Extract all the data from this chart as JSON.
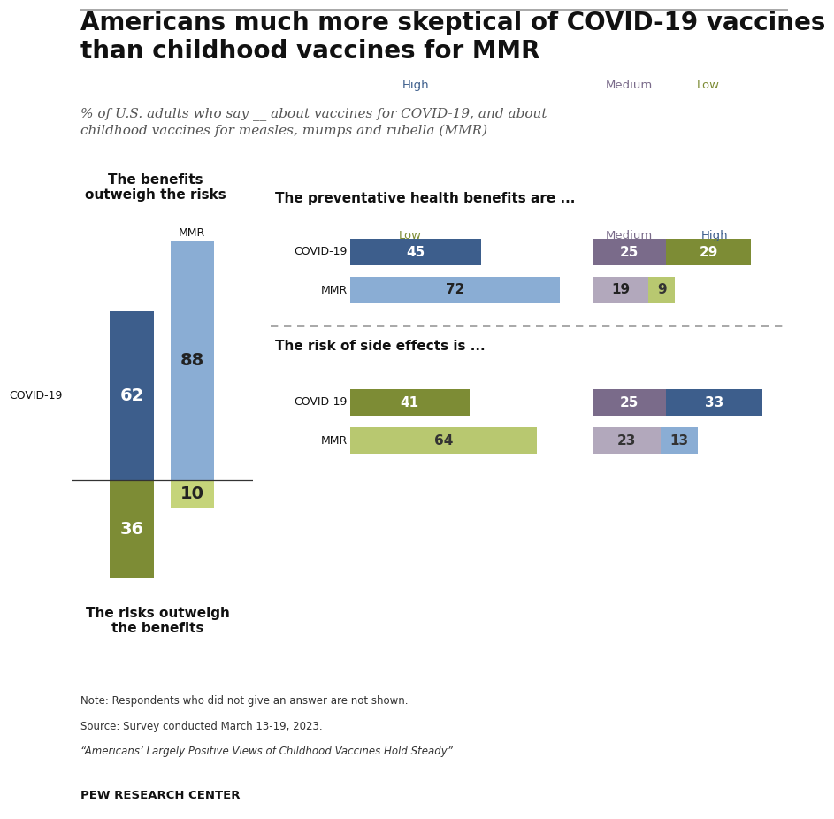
{
  "title": "Americans much more skeptical of COVID-19 vaccines\nthan childhood vaccines for MMR",
  "subtitle": "% of U.S. adults who say __ about vaccines for COVID-19, and about\nchildhood vaccines for measles, mumps and rubella (MMR)",
  "bar_left_title": "The benefits\noutweigh the risks",
  "bar_left_bottom_title": "The risks outweigh\nthe benefits",
  "bar_chart": {
    "covid_benefits": 62,
    "mmr_benefits": 88,
    "covid_risks": 36,
    "mmr_risks": 10,
    "covid_color": "#3d5e8c",
    "mmr_color": "#8aadd4",
    "covid_risk_color": "#7d8c35",
    "mmr_risk_color": "#c5d47a"
  },
  "section1_title": "The preventative health benefits are ...",
  "section1": {
    "covid_vals": [
      45,
      25,
      29
    ],
    "mmr_vals": [
      72,
      19,
      9
    ],
    "colors_covid": [
      "#3d5e8c",
      "#7a6b8a",
      "#7d8c35"
    ],
    "colors_mmr": [
      "#8aadd4",
      "#b2a8bc",
      "#b8c870"
    ],
    "label1": "High",
    "label2": "Medium",
    "label3": "Low",
    "label1_color": "#3d5e8c",
    "label2_color": "#7a6b8a",
    "label3_color": "#7d8c35"
  },
  "section2_title": "The risk of side effects is ...",
  "section2": {
    "covid_vals": [
      41,
      25,
      33
    ],
    "mmr_vals": [
      64,
      23,
      13
    ],
    "colors_covid": [
      "#7d8c35",
      "#7a6b8a",
      "#3d5e8c"
    ],
    "colors_mmr": [
      "#b8c870",
      "#b2a8bc",
      "#8aadd4"
    ],
    "label1": "Low",
    "label2": "Medium",
    "label3": "High",
    "label1_color": "#7d8c35",
    "label2_color": "#7a6b8a",
    "label3_color": "#3d5e8c"
  },
  "note_line1": "Note: Respondents who did not give an answer are not shown.",
  "note_line2": "Source: Survey conducted March 13-19, 2023.",
  "note_line3": "“Americans’ Largely Positive Views of Childhood Vaccines Hold Steady”",
  "source_label": "PEW RESEARCH CENTER",
  "bg_color": "#edeade",
  "main_bg": "#ffffff"
}
